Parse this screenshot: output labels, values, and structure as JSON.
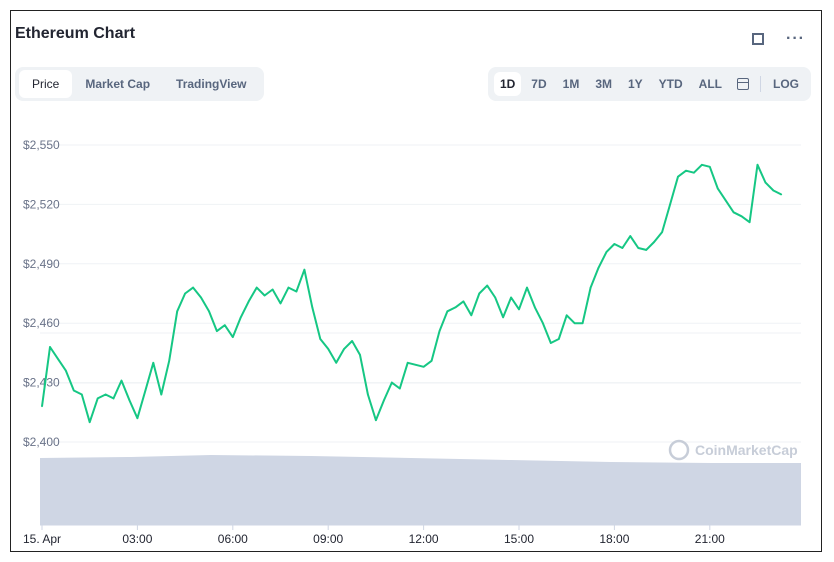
{
  "header": {
    "title": "Ethereum Chart"
  },
  "tabs": [
    {
      "label": "Price",
      "active": true
    },
    {
      "label": "Market Cap",
      "active": false
    },
    {
      "label": "TradingView",
      "active": false
    }
  ],
  "ranges": {
    "items": [
      {
        "label": "1D",
        "active": true
      },
      {
        "label": "7D",
        "active": false
      },
      {
        "label": "1M",
        "active": false
      },
      {
        "label": "3M",
        "active": false
      },
      {
        "label": "1Y",
        "active": false
      },
      {
        "label": "YTD",
        "active": false
      },
      {
        "label": "ALL",
        "active": false
      }
    ],
    "log_label": "LOG"
  },
  "icons": [
    "fullscreen-icon",
    "more-options-icon",
    "calendar-icon",
    "coinmarketcap-logo-icon"
  ],
  "watermark": "CoinMarketCap",
  "colors": {
    "line": "#16c784",
    "volume": "#cfd6e4",
    "grid": "#eff2f5"
  },
  "chart_data": {
    "type": "line",
    "title": "",
    "ylim": [
      2400,
      2555
    ],
    "yticks": [
      {
        "value": 2550,
        "label": "$2,550"
      },
      {
        "value": 2520,
        "label": "$2,520"
      },
      {
        "value": 2490,
        "label": "$2,490"
      },
      {
        "value": 2460,
        "label": "$2,460"
      },
      {
        "value": 2430,
        "label": "$2,430"
      },
      {
        "value": 2400,
        "label": "$2,400"
      }
    ],
    "xlim": [
      0,
      24
    ],
    "xticks": [
      {
        "value": 0,
        "label": "15. Apr"
      },
      {
        "value": 3,
        "label": "03:00"
      },
      {
        "value": 6,
        "label": "06:00"
      },
      {
        "value": 9,
        "label": "09:00"
      },
      {
        "value": 12,
        "label": "12:00"
      },
      {
        "value": 15,
        "label": "15:00"
      },
      {
        "value": 18,
        "label": "18:00"
      },
      {
        "value": 21,
        "label": "21:00"
      }
    ],
    "grid": true,
    "series": [
      {
        "x": [
          0,
          0.25,
          0.5,
          0.75,
          1,
          1.25,
          1.5,
          1.75,
          2,
          2.25,
          2.5,
          2.75,
          3,
          3.25,
          3.5,
          3.75,
          4,
          4.25,
          4.5,
          4.75,
          5,
          5.25,
          5.5,
          5.75,
          6,
          6.25,
          6.5,
          6.75,
          7,
          7.25,
          7.5,
          7.75,
          8,
          8.25,
          8.5,
          8.75,
          9,
          9.25,
          9.5,
          9.75,
          10,
          10.25,
          10.5,
          10.75,
          11,
          11.25,
          11.5,
          11.75,
          12,
          12.25,
          12.5,
          12.75,
          13,
          13.25,
          13.5,
          13.75,
          14,
          14.25,
          14.5,
          14.75,
          15,
          15.25,
          15.5,
          15.75,
          16,
          16.25,
          16.5,
          16.75,
          17,
          17.25,
          17.5,
          17.75,
          18,
          18.25,
          18.5,
          18.75,
          19,
          19.25,
          19.5,
          19.75,
          20,
          20.25,
          20.5,
          20.75,
          21,
          21.25,
          21.5,
          21.75,
          22,
          22.25,
          22.5,
          22.75,
          23,
          23.25
        ],
        "values": [
          2418,
          2448,
          2442,
          2436,
          2426,
          2424,
          2410,
          2422,
          2424,
          2422,
          2431,
          2421,
          2412,
          2426,
          2440,
          2424,
          2441,
          2466,
          2475,
          2478,
          2473,
          2466,
          2456,
          2459,
          2453,
          2463,
          2471,
          2478,
          2474,
          2477,
          2470,
          2478,
          2476,
          2487,
          2468,
          2452,
          2447,
          2440,
          2447,
          2451,
          2444,
          2424,
          2411,
          2421,
          2430,
          2427,
          2440,
          2439,
          2438,
          2441,
          2456,
          2466,
          2468,
          2471,
          2464,
          2475,
          2479,
          2473,
          2463,
          2473,
          2467,
          2478,
          2468,
          2460,
          2450,
          2452,
          2464,
          2460,
          2460,
          2478,
          2488,
          2496,
          2500,
          2498,
          2504,
          2498,
          2497,
          2501,
          2506,
          2520,
          2534,
          2537,
          2536,
          2540,
          2539,
          2528,
          2522,
          2516,
          2514,
          2511,
          2540,
          2531,
          2527,
          2525
        ]
      }
    ],
    "volume_band": true
  }
}
